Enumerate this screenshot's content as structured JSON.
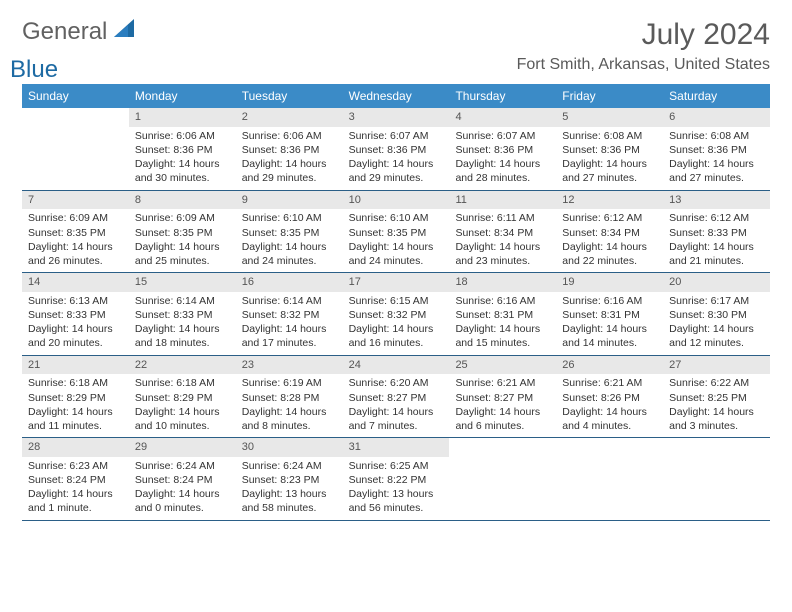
{
  "brand": {
    "general": "General",
    "blue": "Blue"
  },
  "title": "July 2024",
  "location": "Fort Smith, Arkansas, United States",
  "colors": {
    "header_bg": "#3b8bc7",
    "header_text": "#ffffff",
    "daynum_bg": "#e8e8e8",
    "border": "#2b5f87",
    "title_color": "#5a5a5a",
    "text_color": "#333333"
  },
  "calendar": {
    "day_names": [
      "Sunday",
      "Monday",
      "Tuesday",
      "Wednesday",
      "Thursday",
      "Friday",
      "Saturday"
    ],
    "weeks": [
      [
        {
          "n": "",
          "sunrise": "",
          "sunset": "",
          "daylight": ""
        },
        {
          "n": "1",
          "sunrise": "Sunrise: 6:06 AM",
          "sunset": "Sunset: 8:36 PM",
          "daylight": "Daylight: 14 hours and 30 minutes."
        },
        {
          "n": "2",
          "sunrise": "Sunrise: 6:06 AM",
          "sunset": "Sunset: 8:36 PM",
          "daylight": "Daylight: 14 hours and 29 minutes."
        },
        {
          "n": "3",
          "sunrise": "Sunrise: 6:07 AM",
          "sunset": "Sunset: 8:36 PM",
          "daylight": "Daylight: 14 hours and 29 minutes."
        },
        {
          "n": "4",
          "sunrise": "Sunrise: 6:07 AM",
          "sunset": "Sunset: 8:36 PM",
          "daylight": "Daylight: 14 hours and 28 minutes."
        },
        {
          "n": "5",
          "sunrise": "Sunrise: 6:08 AM",
          "sunset": "Sunset: 8:36 PM",
          "daylight": "Daylight: 14 hours and 27 minutes."
        },
        {
          "n": "6",
          "sunrise": "Sunrise: 6:08 AM",
          "sunset": "Sunset: 8:36 PM",
          "daylight": "Daylight: 14 hours and 27 minutes."
        }
      ],
      [
        {
          "n": "7",
          "sunrise": "Sunrise: 6:09 AM",
          "sunset": "Sunset: 8:35 PM",
          "daylight": "Daylight: 14 hours and 26 minutes."
        },
        {
          "n": "8",
          "sunrise": "Sunrise: 6:09 AM",
          "sunset": "Sunset: 8:35 PM",
          "daylight": "Daylight: 14 hours and 25 minutes."
        },
        {
          "n": "9",
          "sunrise": "Sunrise: 6:10 AM",
          "sunset": "Sunset: 8:35 PM",
          "daylight": "Daylight: 14 hours and 24 minutes."
        },
        {
          "n": "10",
          "sunrise": "Sunrise: 6:10 AM",
          "sunset": "Sunset: 8:35 PM",
          "daylight": "Daylight: 14 hours and 24 minutes."
        },
        {
          "n": "11",
          "sunrise": "Sunrise: 6:11 AM",
          "sunset": "Sunset: 8:34 PM",
          "daylight": "Daylight: 14 hours and 23 minutes."
        },
        {
          "n": "12",
          "sunrise": "Sunrise: 6:12 AM",
          "sunset": "Sunset: 8:34 PM",
          "daylight": "Daylight: 14 hours and 22 minutes."
        },
        {
          "n": "13",
          "sunrise": "Sunrise: 6:12 AM",
          "sunset": "Sunset: 8:33 PM",
          "daylight": "Daylight: 14 hours and 21 minutes."
        }
      ],
      [
        {
          "n": "14",
          "sunrise": "Sunrise: 6:13 AM",
          "sunset": "Sunset: 8:33 PM",
          "daylight": "Daylight: 14 hours and 20 minutes."
        },
        {
          "n": "15",
          "sunrise": "Sunrise: 6:14 AM",
          "sunset": "Sunset: 8:33 PM",
          "daylight": "Daylight: 14 hours and 18 minutes."
        },
        {
          "n": "16",
          "sunrise": "Sunrise: 6:14 AM",
          "sunset": "Sunset: 8:32 PM",
          "daylight": "Daylight: 14 hours and 17 minutes."
        },
        {
          "n": "17",
          "sunrise": "Sunrise: 6:15 AM",
          "sunset": "Sunset: 8:32 PM",
          "daylight": "Daylight: 14 hours and 16 minutes."
        },
        {
          "n": "18",
          "sunrise": "Sunrise: 6:16 AM",
          "sunset": "Sunset: 8:31 PM",
          "daylight": "Daylight: 14 hours and 15 minutes."
        },
        {
          "n": "19",
          "sunrise": "Sunrise: 6:16 AM",
          "sunset": "Sunset: 8:31 PM",
          "daylight": "Daylight: 14 hours and 14 minutes."
        },
        {
          "n": "20",
          "sunrise": "Sunrise: 6:17 AM",
          "sunset": "Sunset: 8:30 PM",
          "daylight": "Daylight: 14 hours and 12 minutes."
        }
      ],
      [
        {
          "n": "21",
          "sunrise": "Sunrise: 6:18 AM",
          "sunset": "Sunset: 8:29 PM",
          "daylight": "Daylight: 14 hours and 11 minutes."
        },
        {
          "n": "22",
          "sunrise": "Sunrise: 6:18 AM",
          "sunset": "Sunset: 8:29 PM",
          "daylight": "Daylight: 14 hours and 10 minutes."
        },
        {
          "n": "23",
          "sunrise": "Sunrise: 6:19 AM",
          "sunset": "Sunset: 8:28 PM",
          "daylight": "Daylight: 14 hours and 8 minutes."
        },
        {
          "n": "24",
          "sunrise": "Sunrise: 6:20 AM",
          "sunset": "Sunset: 8:27 PM",
          "daylight": "Daylight: 14 hours and 7 minutes."
        },
        {
          "n": "25",
          "sunrise": "Sunrise: 6:21 AM",
          "sunset": "Sunset: 8:27 PM",
          "daylight": "Daylight: 14 hours and 6 minutes."
        },
        {
          "n": "26",
          "sunrise": "Sunrise: 6:21 AM",
          "sunset": "Sunset: 8:26 PM",
          "daylight": "Daylight: 14 hours and 4 minutes."
        },
        {
          "n": "27",
          "sunrise": "Sunrise: 6:22 AM",
          "sunset": "Sunset: 8:25 PM",
          "daylight": "Daylight: 14 hours and 3 minutes."
        }
      ],
      [
        {
          "n": "28",
          "sunrise": "Sunrise: 6:23 AM",
          "sunset": "Sunset: 8:24 PM",
          "daylight": "Daylight: 14 hours and 1 minute."
        },
        {
          "n": "29",
          "sunrise": "Sunrise: 6:24 AM",
          "sunset": "Sunset: 8:24 PM",
          "daylight": "Daylight: 14 hours and 0 minutes."
        },
        {
          "n": "30",
          "sunrise": "Sunrise: 6:24 AM",
          "sunset": "Sunset: 8:23 PM",
          "daylight": "Daylight: 13 hours and 58 minutes."
        },
        {
          "n": "31",
          "sunrise": "Sunrise: 6:25 AM",
          "sunset": "Sunset: 8:22 PM",
          "daylight": "Daylight: 13 hours and 56 minutes."
        },
        {
          "n": "",
          "sunrise": "",
          "sunset": "",
          "daylight": ""
        },
        {
          "n": "",
          "sunrise": "",
          "sunset": "",
          "daylight": ""
        },
        {
          "n": "",
          "sunrise": "",
          "sunset": "",
          "daylight": ""
        }
      ]
    ]
  }
}
